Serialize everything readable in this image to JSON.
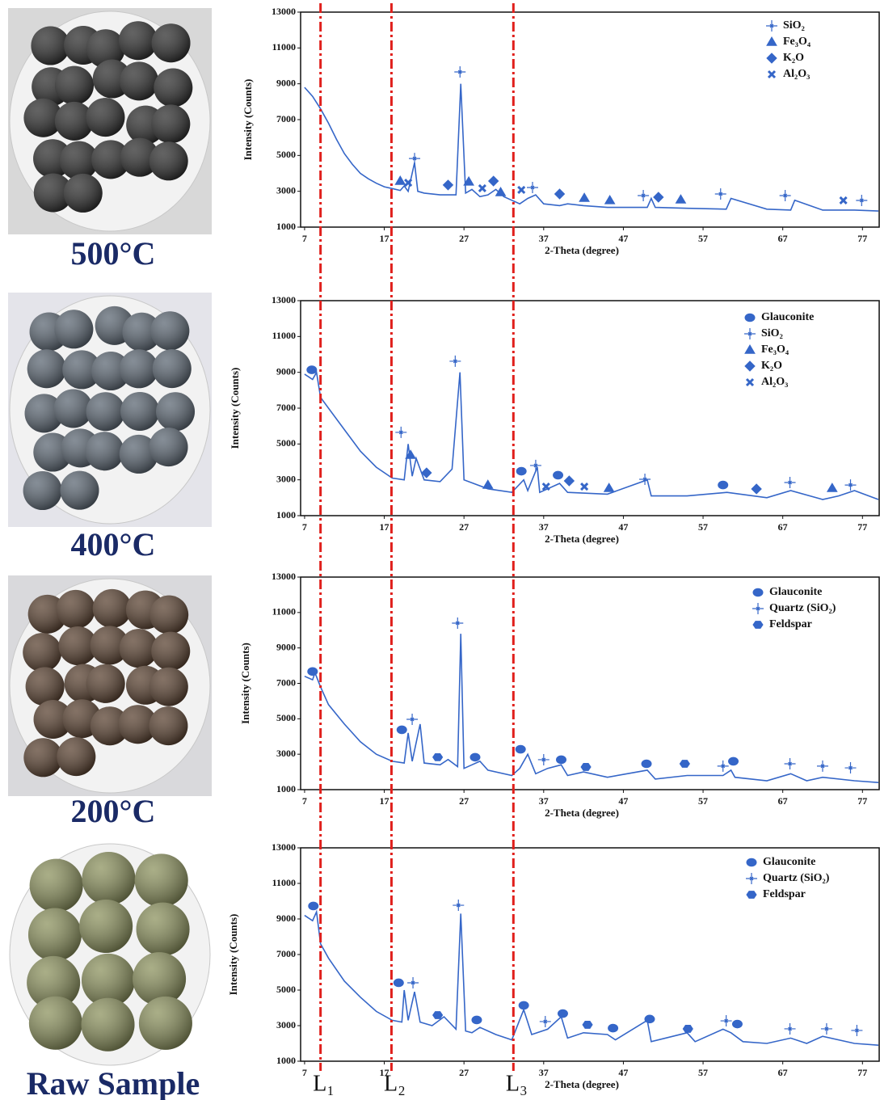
{
  "chart_data": [
    {
      "type": "line",
      "title": "500°C",
      "xlabel": "2-Theta (degree)",
      "ylabel": "Intensity (Counts)",
      "xlim": [
        6.5,
        79.2
      ],
      "ylim": [
        1000,
        13000
      ],
      "xticks": [
        7,
        17,
        27,
        37,
        47,
        57,
        67,
        77
      ],
      "yticks": [
        1000,
        3000,
        5000,
        7000,
        9000,
        11000,
        13000
      ],
      "series": [
        {
          "color": "#3566c8",
          "x": [
            7,
            8,
            9,
            10,
            11,
            12,
            13,
            14,
            15,
            16,
            17,
            18,
            19,
            19.5,
            20,
            20.8,
            21.2,
            22,
            24,
            26,
            26.6,
            27.2,
            28,
            29,
            30,
            31,
            32,
            33,
            34,
            35,
            36,
            37,
            39,
            40,
            42,
            45,
            50,
            50.5,
            51,
            55,
            59.9,
            60.5,
            65,
            68,
            68.5,
            72,
            76,
            79
          ],
          "values": [
            8800,
            8300,
            7600,
            6800,
            5900,
            5100,
            4500,
            4000,
            3700,
            3450,
            3250,
            3150,
            3050,
            3300,
            3000,
            4600,
            3000,
            2900,
            2800,
            2800,
            9000,
            2900,
            3100,
            2700,
            2800,
            3100,
            2700,
            2500,
            2300,
            2600,
            2800,
            2300,
            2200,
            2300,
            2200,
            2100,
            2100,
            2600,
            2100,
            2050,
            2000,
            2600,
            2000,
            1950,
            2500,
            1950,
            1950,
            1900
          ]
        }
      ],
      "markers": [
        {
          "name": "SiO₂",
          "marker": "plus",
          "color": "#3566c8",
          "x": [
            20.8,
            26.5,
            35.6,
            49.5,
            59.2,
            67.3,
            76.9
          ],
          "values": [
            4830,
            9660,
            3210,
            2760,
            2850,
            2760,
            2490
          ]
        },
        {
          "name": "Fe₃O₄",
          "marker": "triangle",
          "color": "#3566c8",
          "x": [
            19,
            27.6,
            31.6,
            42.1,
            45.3,
            54.2
          ],
          "values": [
            3570,
            3530,
            2940,
            2620,
            2490,
            2530
          ]
        },
        {
          "name": "K₂O",
          "marker": "diamond",
          "color": "#3566c8",
          "x": [
            25,
            30.7,
            39,
            51.4
          ],
          "values": [
            3350,
            3570,
            2850,
            2670
          ]
        },
        {
          "name": "Al₂O₃",
          "marker": "cross",
          "color": "#3566c8",
          "x": [
            20,
            29.3,
            34.2,
            74.6
          ],
          "values": [
            3480,
            3170,
            3080,
            2490
          ]
        }
      ]
    },
    {
      "type": "line",
      "title": "400°C",
      "xlabel": "2-Theta (degree)",
      "ylabel": "Intensity (Counts)",
      "xlim": [
        6.5,
        79.2
      ],
      "ylim": [
        1000,
        13000
      ],
      "xticks": [
        7,
        17,
        27,
        37,
        47,
        57,
        67,
        77
      ],
      "yticks": [
        1000,
        3000,
        5000,
        7000,
        9000,
        11000,
        13000
      ],
      "series": [
        {
          "color": "#3566c8",
          "x": [
            7,
            8,
            8.5,
            9,
            10,
            12,
            14,
            16,
            18,
            19.5,
            20,
            20.5,
            21,
            22,
            24,
            25.5,
            26.5,
            27,
            30,
            33,
            34.5,
            35,
            36.2,
            36.5,
            39,
            40,
            45,
            50,
            50.5,
            55,
            60,
            65,
            68,
            72,
            74,
            76,
            79
          ],
          "values": [
            8900,
            8600,
            9000,
            7600,
            7000,
            5800,
            4600,
            3700,
            3100,
            3000,
            5000,
            3200,
            4200,
            3000,
            2900,
            3600,
            9000,
            3000,
            2500,
            2300,
            3000,
            2400,
            3700,
            2300,
            2800,
            2300,
            2200,
            3000,
            2100,
            2100,
            2300,
            2000,
            2400,
            1900,
            2100,
            2400,
            1900
          ]
        }
      ],
      "markers": [
        {
          "name": "Glauconite",
          "marker": "circle",
          "color": "#3566c8",
          "x": [
            7.9,
            34.2,
            38.8,
            59.5
          ],
          "values": [
            9140,
            3480,
            3260,
            2710
          ]
        },
        {
          "name": "SiO₂",
          "marker": "plus",
          "color": "#3566c8",
          "x": [
            19.1,
            25.9,
            36,
            49.7,
            67.9,
            75.5
          ],
          "values": [
            5650,
            9620,
            3800,
            3030,
            2850,
            2710
          ]
        },
        {
          "name": "Fe₃O₄",
          "marker": "triangle",
          "color": "#3566c8",
          "x": [
            20.3,
            30,
            45.2,
            73.2
          ],
          "values": [
            4380,
            2710,
            2530,
            2530
          ]
        },
        {
          "name": "K₂O",
          "marker": "diamond",
          "color": "#3566c8",
          "x": [
            22.3,
            40.2,
            63.7
          ],
          "values": [
            3390,
            2940,
            2490
          ]
        },
        {
          "name": "Al₂O₃",
          "marker": "cross",
          "color": "#3566c8",
          "x": [
            37.3,
            42.1
          ],
          "values": [
            2620,
            2620
          ]
        }
      ]
    },
    {
      "type": "line",
      "title": "200°C",
      "xlabel": "2-Theta (degree)",
      "ylabel": "Intensity (Counts)",
      "xlim": [
        6.5,
        79.2
      ],
      "ylim": [
        1000,
        13000
      ],
      "xticks": [
        7,
        17,
        27,
        37,
        47,
        57,
        67,
        77
      ],
      "yticks": [
        1000,
        3000,
        5000,
        7000,
        9000,
        11000,
        13000
      ],
      "series": [
        {
          "color": "#3566c8",
          "x": [
            7,
            8,
            8.3,
            9,
            10,
            12,
            14,
            16,
            18,
            19.5,
            20,
            20.5,
            21.5,
            22,
            24,
            25,
            26.2,
            26.6,
            27,
            28,
            29,
            30,
            33,
            34,
            35,
            36,
            37.5,
            39.2,
            40,
            42,
            45,
            50,
            51,
            55,
            59.5,
            60.5,
            61,
            65,
            68,
            70,
            72,
            76,
            79
          ],
          "values": [
            7400,
            7200,
            7600,
            6800,
            5800,
            4700,
            3700,
            3000,
            2600,
            2500,
            4200,
            2600,
            4700,
            2500,
            2400,
            2700,
            2300,
            9800,
            2200,
            2400,
            2600,
            2100,
            1800,
            2200,
            3000,
            1900,
            2200,
            2400,
            1800,
            2000,
            1700,
            2100,
            1600,
            1800,
            1800,
            2100,
            1700,
            1500,
            1900,
            1500,
            1700,
            1500,
            1400
          ]
        }
      ],
      "markers": [
        {
          "name": "Glauconite",
          "marker": "circle",
          "color": "#3566c8",
          "x": [
            8,
            19.2,
            28.4,
            34.1,
            39.2,
            49.9,
            60.8
          ],
          "values": [
            7670,
            4380,
            2830,
            3280,
            2690,
            2460,
            2600
          ]
        },
        {
          "name": "Quartz (SiO₂)",
          "marker": "plus",
          "color": "#3566c8",
          "x": [
            20.5,
            26.2,
            37,
            59.5,
            67.9,
            72,
            75.5
          ],
          "values": [
            4970,
            10400,
            2690,
            2330,
            2460,
            2330,
            2230
          ]
        },
        {
          "name": "Feldspar",
          "marker": "hexagon",
          "color": "#3566c8",
          "x": [
            23.7,
            42.3,
            54.7
          ],
          "values": [
            2830,
            2280,
            2460
          ]
        }
      ]
    },
    {
      "type": "line",
      "title": "Raw Sample",
      "xlabel": "2-Theta (degree)",
      "ylabel": "Intensity (Counts)",
      "xlim": [
        6.5,
        79.2
      ],
      "ylim": [
        1000,
        13000
      ],
      "xticks": [
        7,
        17,
        27,
        37,
        47,
        57,
        67,
        77
      ],
      "yticks": [
        1000,
        3000,
        5000,
        7000,
        9000,
        11000,
        13000
      ],
      "series": [
        {
          "color": "#3566c8",
          "x": [
            7,
            8,
            8.5,
            9,
            10,
            12,
            14,
            16,
            18,
            19.2,
            19.5,
            20,
            20.8,
            21.5,
            23,
            24.5,
            26,
            26.6,
            27.2,
            28,
            29,
            31,
            33,
            34.5,
            35.5,
            37.5,
            39.2,
            40,
            42,
            45,
            46,
            50,
            50.5,
            55,
            56,
            59.5,
            60.5,
            62,
            65,
            68,
            70,
            72,
            76,
            79
          ],
          "values": [
            9200,
            8900,
            9400,
            7600,
            6800,
            5500,
            4600,
            3800,
            3300,
            3200,
            5000,
            3300,
            4900,
            3200,
            3000,
            3500,
            2800,
            9300,
            2700,
            2600,
            2900,
            2500,
            2200,
            3900,
            2500,
            2800,
            3500,
            2300,
            2600,
            2500,
            2200,
            3300,
            2100,
            2600,
            2100,
            2800,
            2600,
            2100,
            2000,
            2300,
            2000,
            2400,
            2000,
            1900
          ]
        }
      ],
      "markers": [
        {
          "name": "Glauconite",
          "marker": "circle",
          "color": "#3566c8",
          "x": [
            8.1,
            18.8,
            28.6,
            34.5,
            39.4,
            45.7,
            50.3,
            61.3
          ],
          "values": [
            9730,
            5410,
            3320,
            4140,
            3680,
            2860,
            3370,
            3090
          ]
        },
        {
          "name": "Quartz (SiO₂)",
          "marker": "plus",
          "color": "#3566c8",
          "x": [
            20.6,
            26.3,
            37.2,
            59.9,
            67.9,
            72.5,
            76.3
          ],
          "values": [
            5410,
            9770,
            3230,
            3270,
            2820,
            2820,
            2730
          ]
        },
        {
          "name": "Feldspar",
          "marker": "hexagon",
          "color": "#3566c8",
          "x": [
            23.7,
            42.5,
            55.1
          ],
          "values": [
            3590,
            3050,
            2820
          ]
        }
      ]
    }
  ],
  "reference_lines": {
    "color": "#e0201c",
    "x": [
      9,
      17.9,
      33.2
    ],
    "labels": [
      "L₁",
      "L₂",
      "L₃"
    ]
  }
}
